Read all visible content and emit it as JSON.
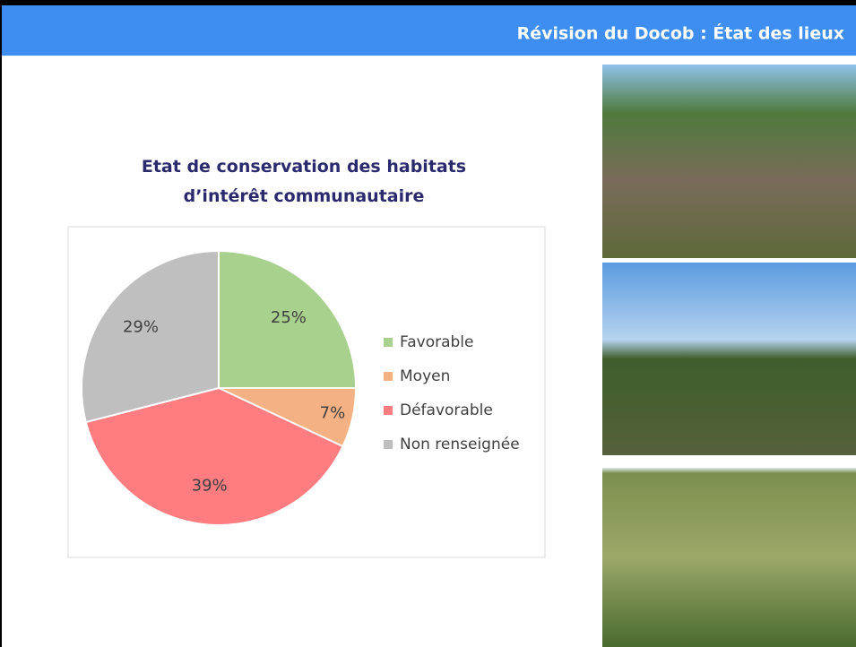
{
  "header": {
    "title": "Révision du Docob : État des lieux"
  },
  "chart_data": {
    "type": "pie",
    "title": "Etat de conservation des habitats d’intérêt communautaire",
    "categories": [
      "Favorable",
      "Moyen",
      "Défavorable",
      "Non renseignée"
    ],
    "values": [
      25,
      7,
      39,
      29
    ],
    "value_labels": [
      "25%",
      "7%",
      "39%",
      "29%"
    ],
    "colors": [
      "#a9d18e",
      "#f4b183",
      "#ff7c80",
      "#bfbfbf"
    ],
    "legend": "right"
  }
}
